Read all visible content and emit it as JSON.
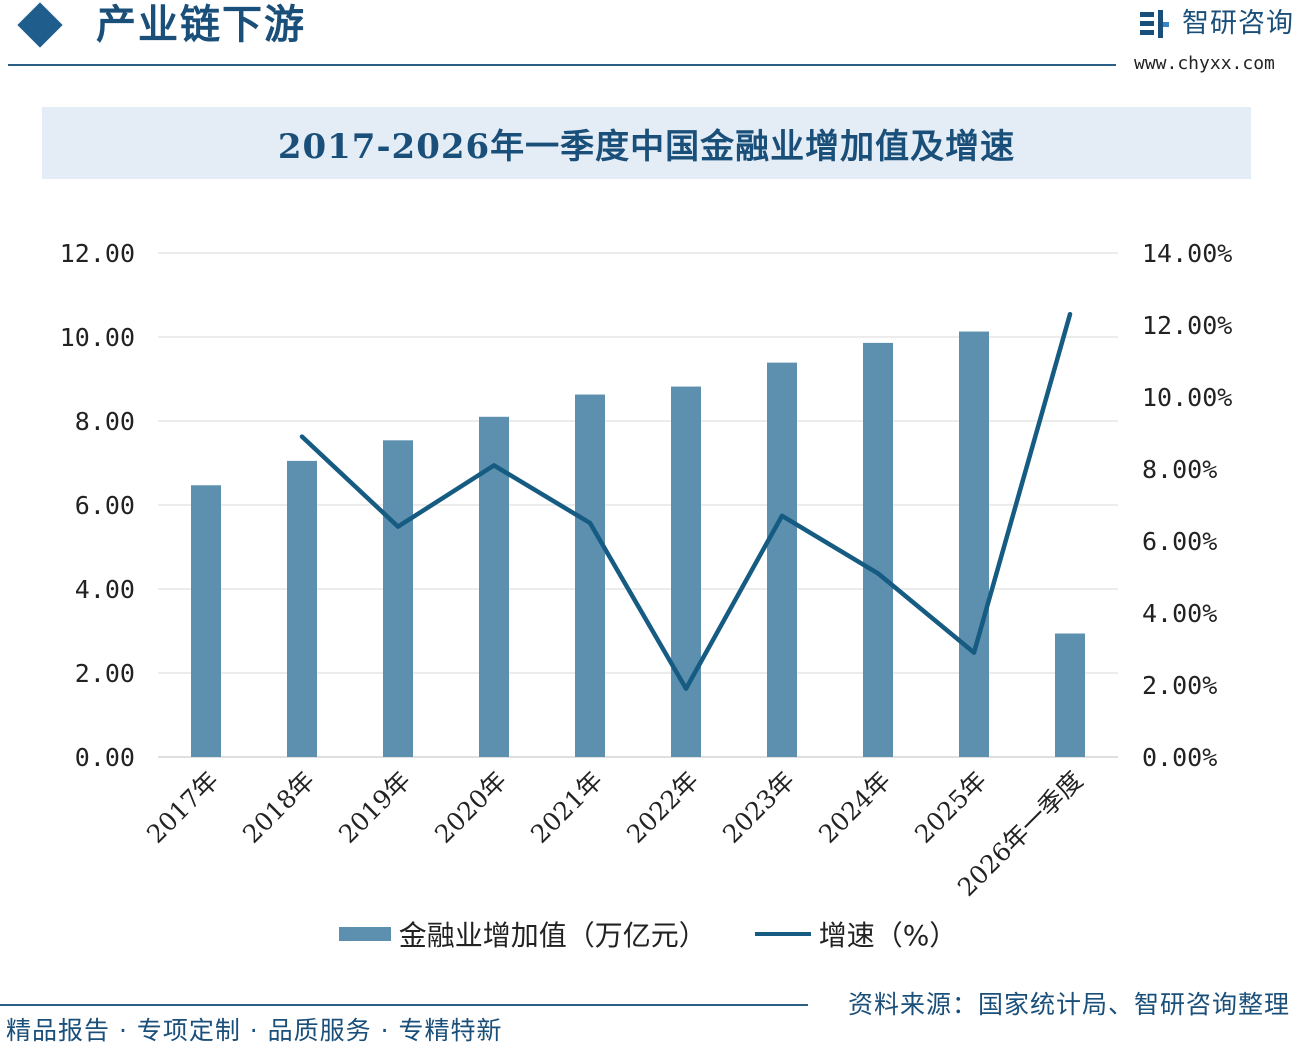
{
  "header": {
    "section_title": "产业链下游",
    "brand_name": "智研咨询",
    "brand_url": "www.chyxx.com"
  },
  "footer": {
    "tagline": "精品报告 · 专项定制 · 品质服务 · 专精特新",
    "source": "资料来源：国家统计局、智研咨询整理"
  },
  "colors": {
    "bar": "#5d8fae",
    "line": "#155b82",
    "title_bg": "#e4edf6",
    "brand": "#1a4f7a"
  },
  "chart_data": {
    "type": "bar",
    "title": "2017-2026年一季度中国金融业增加值及增速",
    "categories": [
      "2017年",
      "2018年",
      "2019年",
      "2020年",
      "2021年",
      "2022年",
      "2023年",
      "2024年",
      "2025年",
      "2026年一季度"
    ],
    "series": [
      {
        "name": "金融业增加值（万亿元）",
        "type": "bar",
        "axis": "left",
        "values": [
          6.47,
          7.05,
          7.54,
          8.1,
          8.63,
          8.82,
          9.39,
          9.86,
          10.13,
          2.94
        ]
      },
      {
        "name": "增速（%）",
        "type": "line",
        "axis": "right",
        "values": [
          null,
          8.9,
          6.4,
          8.1,
          6.5,
          1.9,
          6.7,
          5.1,
          2.9,
          12.3
        ]
      }
    ],
    "y_left": {
      "ylim": [
        0,
        12
      ],
      "ticks": [
        "0.00",
        "2.00",
        "4.00",
        "6.00",
        "8.00",
        "10.00",
        "12.00"
      ]
    },
    "y_right": {
      "ylim": [
        0,
        14
      ],
      "ticks": [
        "0.00%",
        "2.00%",
        "4.00%",
        "6.00%",
        "8.00%",
        "10.00%",
        "12.00%",
        "14.00%"
      ]
    },
    "grid": true,
    "legend_position": "bottom"
  }
}
